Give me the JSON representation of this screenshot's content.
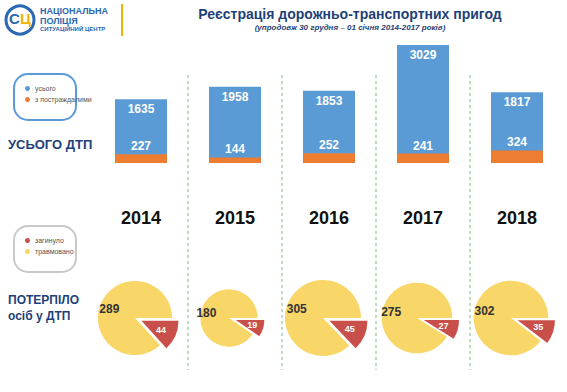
{
  "logo": {
    "mark": [
      "С",
      "Ц"
    ],
    "lines": [
      "НАЦІОНАЛЬНА",
      "ПОЛІЦІЯ",
      "СИТУАЦІЙНИЙ ЦЕНТР"
    ]
  },
  "chart_data": [
    {
      "type": "bar",
      "title": "Реєстрація дорожньо-транспортних пригод",
      "subtitle": "(упродовж 30 грудня – 01 січня 2014-2017 років)",
      "row_label": "УСЬОГО ДТП",
      "categories": [
        "2014",
        "2015",
        "2016",
        "2017",
        "2018"
      ],
      "series": [
        {
          "name": "усього",
          "color": "#5b9bd5",
          "values": [
            1635,
            1958,
            1853,
            3029,
            1817
          ]
        },
        {
          "name": "з постраждалими",
          "color": "#ed7d31",
          "values": [
            227,
            144,
            252,
            241,
            324
          ]
        }
      ],
      "ylim": [
        0,
        3029
      ],
      "tick_labels": "x",
      "data_labels": true,
      "legend": "left"
    },
    {
      "type": "pie",
      "row_label": "ПОТЕРПІЛО\nосіб у ДТП",
      "categories": [
        "2014",
        "2015",
        "2016",
        "2017",
        "2018"
      ],
      "series": [
        {
          "name": "загинуло",
          "color": "#c9504a",
          "values": [
            44,
            19,
            45,
            27,
            35
          ]
        },
        {
          "name": "травмовано",
          "color": "#f9d668",
          "values": [
            289,
            180,
            305,
            275,
            302
          ]
        }
      ],
      "tick_labels": false,
      "data_labels": true,
      "legend": "left"
    }
  ]
}
